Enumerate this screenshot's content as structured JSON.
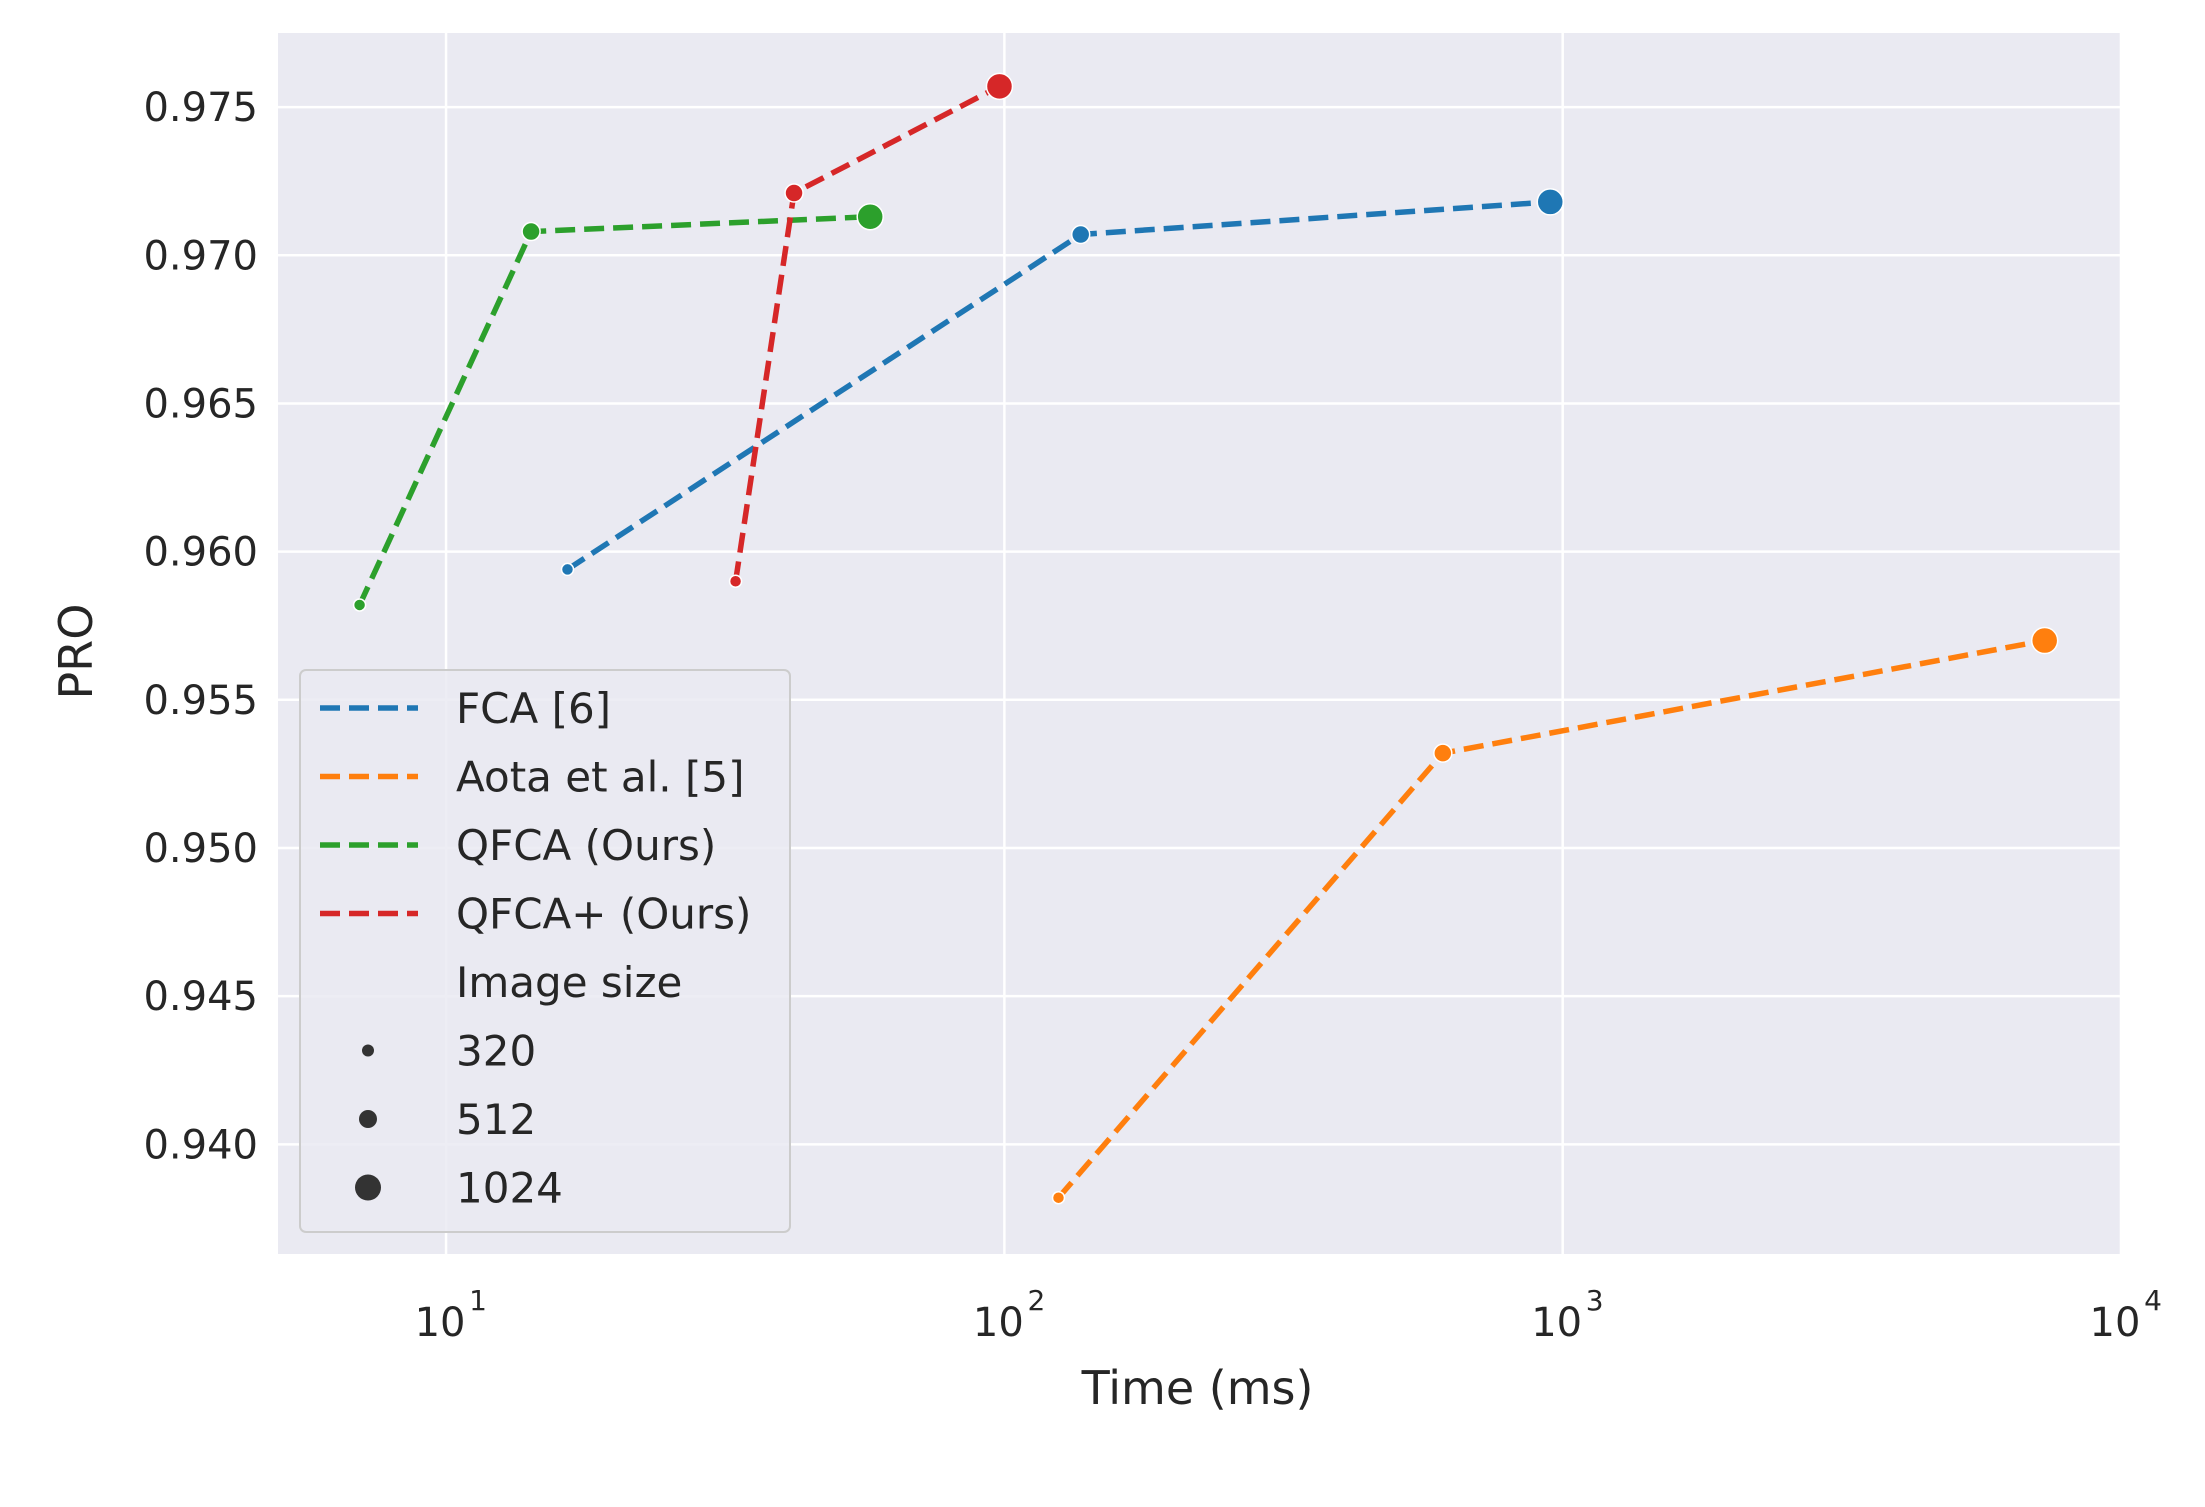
{
  "chart_data": {
    "type": "line",
    "title": "",
    "xlabel": "Time (ms)",
    "ylabel": "PRO",
    "xscale": "log",
    "xlim": [
      5,
      10000
    ],
    "ylim": [
      0.9363,
      0.9775
    ],
    "x_ticks": [
      {
        "value": 10,
        "base": "10",
        "exp": "1"
      },
      {
        "value": 100,
        "base": "10",
        "exp": "2"
      },
      {
        "value": 1000,
        "base": "10",
        "exp": "3"
      },
      {
        "value": 10000,
        "base": "10",
        "exp": "4"
      }
    ],
    "y_ticks": [
      {
        "value": 0.94,
        "label": "0.940"
      },
      {
        "value": 0.945,
        "label": "0.945"
      },
      {
        "value": 0.95,
        "label": "0.950"
      },
      {
        "value": 0.955,
        "label": "0.955"
      },
      {
        "value": 0.96,
        "label": "0.960"
      },
      {
        "value": 0.965,
        "label": "0.965"
      },
      {
        "value": 0.97,
        "label": "0.970"
      },
      {
        "value": 0.975,
        "label": "0.975"
      }
    ],
    "grid": true,
    "background": "#eaeaf2",
    "legend_position": "lower-left",
    "series": [
      {
        "name": "FCA [6]",
        "color": "#1f77b4",
        "line_style": "dashed",
        "points": [
          {
            "x": 16.5,
            "y": 0.9594,
            "size": "320"
          },
          {
            "x": 137,
            "y": 0.9707,
            "size": "512"
          },
          {
            "x": 950,
            "y": 0.9718,
            "size": "1024"
          }
        ]
      },
      {
        "name": "Aota et al. [5]",
        "color": "#ff7f0e",
        "line_style": "dashed",
        "points": [
          {
            "x": 125,
            "y": 0.9382,
            "size": "320"
          },
          {
            "x": 610,
            "y": 0.9532,
            "size": "512"
          },
          {
            "x": 7300,
            "y": 0.957,
            "size": "1024"
          }
        ]
      },
      {
        "name": "QFCA (Ours)",
        "color": "#2ca02c",
        "line_style": "dashed",
        "points": [
          {
            "x": 7,
            "y": 0.9582,
            "size": "320"
          },
          {
            "x": 14.2,
            "y": 0.9708,
            "size": "512"
          },
          {
            "x": 57.5,
            "y": 0.9713,
            "size": "1024"
          }
        ]
      },
      {
        "name": "QFCA+ (Ours)",
        "color": "#d62728",
        "line_style": "dashed",
        "points": [
          {
            "x": 33,
            "y": 0.959,
            "size": "320"
          },
          {
            "x": 42,
            "y": 0.9721,
            "size": "512"
          },
          {
            "x": 98,
            "y": 0.9757,
            "size": "1024"
          }
        ]
      }
    ],
    "size_legend": {
      "title": "Image size",
      "marker_color": "#333333",
      "entries": [
        "320",
        "512",
        "1024"
      ]
    }
  }
}
